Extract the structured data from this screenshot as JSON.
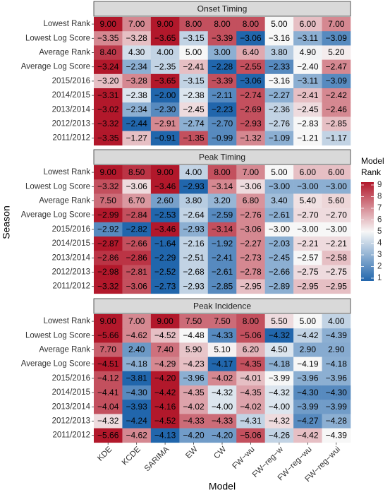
{
  "chart_data": {
    "type": "heatmap",
    "x_label": "Model",
    "y_label": "Season",
    "legend_title": [
      "Model",
      "Rank"
    ],
    "categories": [
      "KDE",
      "KCDE",
      "SARIMA",
      "EW",
      "CW",
      "FW−wu",
      "FW−reg−w",
      "FW−reg−wu",
      "FW−reg−wui"
    ],
    "rows": [
      "Lowest Rank",
      "Lowest Log Score",
      "Average Rank",
      "Average Log Score",
      "2015/2016",
      "2014/2015",
      "2013/2014",
      "2012/2013",
      "2011/2012"
    ],
    "colors": [
      "#2166ac",
      "#f7f7f7",
      "#b2182b"
    ],
    "colorlim": [
      1,
      9
    ],
    "colorticks": [
      1,
      2,
      3,
      4,
      5,
      6,
      7,
      8,
      9
    ],
    "facets": [
      {
        "title": "Onset Timing",
        "values": [
          [
            9,
            7,
            9,
            8,
            8,
            8,
            5,
            6,
            7
          ],
          [
            -3.35,
            -3.28,
            -3.65,
            -3.15,
            -3.39,
            -3.06,
            -3.16,
            -3.11,
            -3.09
          ],
          [
            8.4,
            4.3,
            4.0,
            5.0,
            3.0,
            6.4,
            3.8,
            4.9,
            5.2
          ],
          [
            -3.24,
            -2.34,
            -2.35,
            -2.41,
            -2.28,
            -2.55,
            -2.33,
            -2.4,
            -2.47
          ],
          [
            -3.2,
            -3.28,
            -3.65,
            -3.15,
            -3.39,
            -3.06,
            -3.16,
            -3.11,
            -3.09
          ],
          [
            -3.31,
            -2.38,
            -2.0,
            -2.38,
            -2.11,
            -2.74,
            -2.27,
            -2.41,
            -2.42
          ],
          [
            -3.02,
            -2.34,
            -2.3,
            -2.45,
            -2.23,
            -2.69,
            -2.36,
            -2.45,
            -2.46
          ],
          [
            -3.32,
            -2.44,
            -2.91,
            -2.74,
            -2.7,
            -2.93,
            -2.76,
            -2.83,
            -2.85
          ],
          [
            -3.35,
            -1.27,
            -0.91,
            -1.35,
            -0.99,
            -1.32,
            -1.09,
            -1.21,
            -1.17
          ]
        ],
        "value_labels": [
          [
            "9.00",
            "7.00",
            "9.00",
            "8.00",
            "8.00",
            "8.00",
            "5.00",
            "6.00",
            "7.00"
          ],
          [
            "−3.35",
            "−3.28",
            "−3.65",
            "−3.15",
            "−3.39",
            "−3.06",
            "−3.16",
            "−3.11",
            "−3.09"
          ],
          [
            "8.40",
            "4.30",
            "4.00",
            "5.00",
            "3.00",
            "6.40",
            "3.80",
            "4.90",
            "5.20"
          ],
          [
            "−3.24",
            "−2.34",
            "−2.35",
            "−2.41",
            "−2.28",
            "−2.55",
            "−2.33",
            "−2.40",
            "−2.47"
          ],
          [
            "−3.20",
            "−3.28",
            "−3.65",
            "−3.15",
            "−3.39",
            "−3.06",
            "−3.16",
            "−3.11",
            "−3.09"
          ],
          [
            "−3.31",
            "−2.38",
            "−2.00",
            "−2.38",
            "−2.11",
            "−2.74",
            "−2.27",
            "−2.41",
            "−2.42"
          ],
          [
            "−3.02",
            "−2.34",
            "−2.30",
            "−2.45",
            "−2.23",
            "−2.69",
            "−2.36",
            "−2.45",
            "−2.46"
          ],
          [
            "−3.32",
            "−2.44",
            "−2.91",
            "−2.74",
            "−2.70",
            "−2.93",
            "−2.76",
            "−2.83",
            "−2.85"
          ],
          [
            "−3.35",
            "−1.27",
            "−0.91",
            "−1.35",
            "−0.99",
            "−1.32",
            "−1.09",
            "−1.21",
            "−1.17"
          ]
        ],
        "ranks": [
          [
            9,
            7,
            9,
            8,
            8,
            8,
            5,
            6,
            7
          ],
          [
            7,
            6,
            9,
            4,
            8,
            1,
            5,
            3,
            2
          ],
          [
            8.4,
            4.3,
            4.0,
            5.0,
            3.0,
            6.4,
            3.8,
            4.9,
            5.2
          ],
          [
            9,
            3,
            4,
            6,
            1,
            8,
            2,
            5,
            7
          ],
          [
            6,
            7,
            9,
            4,
            8,
            1,
            5,
            3,
            2
          ],
          [
            9,
            4.5,
            1,
            4.5,
            2,
            8,
            3,
            6,
            7
          ],
          [
            9,
            3,
            2,
            5.5,
            1,
            8,
            4,
            5.5,
            7
          ],
          [
            9,
            1,
            7,
            3,
            2,
            8,
            4,
            5,
            6
          ],
          [
            9,
            6,
            1,
            8,
            2,
            7,
            3,
            5,
            4
          ]
        ]
      },
      {
        "title": "Peak Timing",
        "values": [
          [
            9,
            8.5,
            9,
            4,
            8,
            7,
            5,
            6,
            6
          ],
          [
            -3.32,
            -3.06,
            -3.46,
            -2.93,
            -3.14,
            -3.06,
            -3.0,
            -3.0,
            -3.0
          ],
          [
            7.5,
            6.7,
            2.6,
            3.8,
            3.2,
            6.8,
            3.4,
            5.4,
            5.6
          ],
          [
            -2.99,
            -2.84,
            -2.53,
            -2.64,
            -2.59,
            -2.76,
            -2.61,
            -2.7,
            -2.7
          ],
          [
            -2.92,
            -2.82,
            -3.46,
            -2.93,
            -3.14,
            -3.06,
            -3.0,
            -3.0,
            -3.0
          ],
          [
            -2.87,
            -2.66,
            -1.64,
            -2.16,
            -1.92,
            -2.27,
            -2.03,
            -2.21,
            -2.21
          ],
          [
            -2.86,
            -2.86,
            -2.29,
            -2.51,
            -2.41,
            -2.73,
            -2.45,
            -2.57,
            -2.58
          ],
          [
            -2.98,
            -2.81,
            -2.52,
            -2.68,
            -2.61,
            -2.78,
            -2.66,
            -2.75,
            -2.75
          ],
          [
            -3.32,
            -3.06,
            -2.73,
            -2.93,
            -2.85,
            -2.95,
            -2.89,
            -2.95,
            -2.95
          ]
        ],
        "value_labels": [
          [
            "9.00",
            "8.50",
            "9.00",
            "4.00",
            "8.00",
            "7.00",
            "5.00",
            "6.00",
            "6.00"
          ],
          [
            "−3.32",
            "−3.06",
            "−3.46",
            "−2.93",
            "−3.14",
            "−3.06",
            "−3.00",
            "−3.00",
            "−3.00"
          ],
          [
            "7.50",
            "6.70",
            "2.60",
            "3.80",
            "3.20",
            "6.80",
            "3.40",
            "5.40",
            "5.60"
          ],
          [
            "−2.99",
            "−2.84",
            "−2.53",
            "−2.64",
            "−2.59",
            "−2.76",
            "−2.61",
            "−2.70",
            "−2.70"
          ],
          [
            "−2.92",
            "−2.82",
            "−3.46",
            "−2.93",
            "−3.14",
            "−3.06",
            "−3.00",
            "−3.00",
            "−3.00"
          ],
          [
            "−2.87",
            "−2.66",
            "−1.64",
            "−2.16",
            "−1.92",
            "−2.27",
            "−2.03",
            "−2.21",
            "−2.21"
          ],
          [
            "−2.86",
            "−2.86",
            "−2.29",
            "−2.51",
            "−2.41",
            "−2.73",
            "−2.45",
            "−2.57",
            "−2.58"
          ],
          [
            "−2.98",
            "−2.81",
            "−2.52",
            "−2.68",
            "−2.61",
            "−2.78",
            "−2.66",
            "−2.75",
            "−2.75"
          ],
          [
            "−3.32",
            "−3.06",
            "−2.73",
            "−2.93",
            "−2.85",
            "−2.95",
            "−2.89",
            "−2.95",
            "−2.95"
          ]
        ],
        "ranks": [
          [
            9,
            8.5,
            9,
            4,
            8,
            7,
            5,
            6,
            6
          ],
          [
            8,
            5.5,
            9,
            1,
            7,
            5.5,
            3,
            3,
            3
          ],
          [
            7.5,
            6.7,
            2.6,
            3.8,
            3.2,
            6.8,
            3.4,
            5.4,
            5.6
          ],
          [
            9,
            8,
            1,
            4,
            2,
            7,
            3,
            5.5,
            5.5
          ],
          [
            2,
            1,
            9,
            3,
            8,
            7,
            5,
            5,
            5
          ],
          [
            9,
            8,
            1,
            4,
            2,
            7,
            3,
            5.5,
            5.5
          ],
          [
            8.5,
            8.5,
            1,
            4,
            2,
            7,
            3,
            5,
            6
          ],
          [
            9,
            8,
            1,
            4,
            2,
            7,
            3,
            5.5,
            5.5
          ],
          [
            9,
            8,
            1,
            4,
            2,
            6,
            3,
            6,
            6
          ]
        ]
      },
      {
        "title": "Peak Incidence",
        "values": [
          [
            9,
            7,
            9,
            7.5,
            7.5,
            8,
            5.5,
            5,
            4
          ],
          [
            -5.66,
            -4.62,
            -4.52,
            -4.48,
            -4.33,
            -5.06,
            -4.32,
            -4.42,
            -4.39
          ],
          [
            7.7,
            2.4,
            7.4,
            5.9,
            5.1,
            6.2,
            4.5,
            2.9,
            2.9
          ],
          [
            -4.51,
            -4.18,
            -4.29,
            -4.23,
            -4.17,
            -4.35,
            -4.18,
            -4.19,
            -4.18
          ],
          [
            -4.12,
            -3.81,
            -4.2,
            -3.96,
            -4.02,
            -4.01,
            -3.99,
            -3.96,
            -3.96
          ],
          [
            -4.41,
            -4.3,
            -4.42,
            -4.35,
            -4.32,
            -4.35,
            -4.32,
            -4.3,
            -4.3
          ],
          [
            -4.04,
            -3.93,
            -4.16,
            -4.02,
            -4.0,
            -4.02,
            -4.0,
            -3.99,
            -3.99
          ],
          [
            -4.32,
            -4.24,
            -4.52,
            -4.33,
            -4.33,
            -4.31,
            -4.32,
            -4.27,
            -4.28
          ],
          [
            -5.66,
            -4.62,
            -4.13,
            -4.2,
            -4.2,
            -5.06,
            -4.26,
            -4.42,
            -4.39
          ]
        ],
        "value_labels": [
          [
            "9.00",
            "7.00",
            "9.00",
            "7.50",
            "7.50",
            "8.00",
            "5.50",
            "5.00",
            "4.00"
          ],
          [
            "−5.66",
            "−4.62",
            "−4.52",
            "−4.48",
            "−4.33",
            "−5.06",
            "−4.32",
            "−4.42",
            "−4.39"
          ],
          [
            "7.70",
            "2.40",
            "7.40",
            "5.90",
            "5.10",
            "6.20",
            "4.50",
            "2.90",
            "2.90"
          ],
          [
            "−4.51",
            "−4.18",
            "−4.29",
            "−4.23",
            "−4.17",
            "−4.35",
            "−4.18",
            "−4.19",
            "−4.18"
          ],
          [
            "−4.12",
            "−3.81",
            "−4.20",
            "−3.96",
            "−4.02",
            "−4.01",
            "−3.99",
            "−3.96",
            "−3.96"
          ],
          [
            "−4.41",
            "−4.30",
            "−4.42",
            "−4.35",
            "−4.32",
            "−4.35",
            "−4.32",
            "−4.30",
            "−4.30"
          ],
          [
            "−4.04",
            "−3.93",
            "−4.16",
            "−4.02",
            "−4.00",
            "−4.02",
            "−4.00",
            "−3.99",
            "−3.99"
          ],
          [
            "−4.32",
            "−4.24",
            "−4.52",
            "−4.33",
            "−4.33",
            "−4.31",
            "−4.32",
            "−4.27",
            "−4.28"
          ],
          [
            "−5.66",
            "−4.62",
            "−4.13",
            "−4.20",
            "−4.20",
            "−5.06",
            "−4.26",
            "−4.42",
            "−4.39"
          ]
        ],
        "ranks": [
          [
            9,
            7,
            9,
            7.5,
            7.5,
            8,
            5.5,
            5,
            4
          ],
          [
            9,
            7,
            6,
            5,
            2,
            8,
            1,
            4,
            3
          ],
          [
            7.7,
            2.4,
            7.4,
            5.9,
            5.1,
            6.2,
            4.5,
            2.9,
            2.9
          ],
          [
            9,
            3,
            7,
            6,
            1,
            8,
            3,
            5,
            3
          ],
          [
            8,
            1,
            9,
            3,
            7,
            6,
            5,
            3,
            3
          ],
          [
            8,
            2,
            9,
            6.5,
            4.5,
            6.5,
            4.5,
            2,
            2
          ],
          [
            8,
            1,
            9,
            6.5,
            4.5,
            6.5,
            4.5,
            2.5,
            2.5
          ],
          [
            5.5,
            1,
            9,
            7.5,
            7.5,
            4,
            5.5,
            2,
            3
          ],
          [
            9,
            7,
            1,
            2.5,
            2.5,
            8,
            4,
            6,
            5
          ]
        ]
      }
    ]
  }
}
